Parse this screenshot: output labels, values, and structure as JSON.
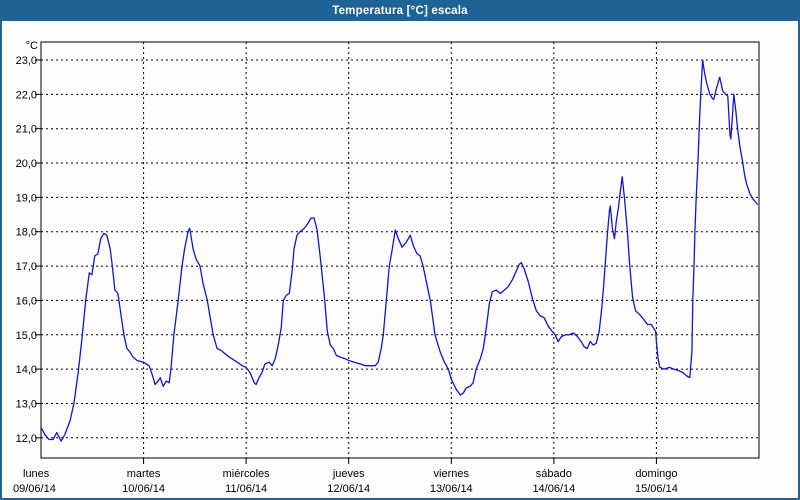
{
  "window": {
    "title": "Temperatura [°C] escala"
  },
  "colors": {
    "titlebar_bg": "#1E6296",
    "frame_border": "#1E6296",
    "titlebar_text": "#FFFFFF",
    "line": "#1414CC",
    "grid": "#000000",
    "axis": "#000000",
    "background": "#FDFDFD",
    "label_text": "#000000"
  },
  "chart_data": {
    "type": "line",
    "title": "Temperatura [°C] escala",
    "ylabel": "°C",
    "ylim": [
      11.4,
      23.5
    ],
    "xlim_hours": [
      0,
      168
    ],
    "grid": "dashed horizontal every 1.0 °C, dashed vertical at each day boundary",
    "legend_position": "none",
    "y_tick_values": [
      23,
      22,
      21,
      20,
      19,
      18,
      17,
      16,
      15,
      14,
      13,
      12
    ],
    "y_tick_labels": [
      "23,0",
      "22,0",
      "21,0",
      "20,0",
      "19,0",
      "18,0",
      "17,0",
      "16,0",
      "15,0",
      "14,0",
      "13,0",
      "12,0"
    ],
    "x_categories": [
      {
        "day": "lunes",
        "date": "09/06/14"
      },
      {
        "day": "martes",
        "date": "10/06/14"
      },
      {
        "day": "miércoles",
        "date": "11/06/14"
      },
      {
        "day": "jueves",
        "date": "12/06/14"
      },
      {
        "day": "viernes",
        "date": "13/06/14"
      },
      {
        "day": "sábado",
        "date": "14/06/14"
      },
      {
        "day": "domingo",
        "date": "15/06/14"
      }
    ],
    "series": [
      {
        "name": "Temperatura [°C]",
        "color": "#1414CC",
        "points": [
          [
            0,
            12.3
          ],
          [
            0.9,
            12.1
          ],
          [
            1.9,
            11.95
          ],
          [
            2.8,
            11.95
          ],
          [
            3.7,
            12.15
          ],
          [
            4.7,
            11.9
          ],
          [
            5.6,
            12.1
          ],
          [
            6.8,
            12.5
          ],
          [
            7.7,
            13.0
          ],
          [
            8.7,
            13.9
          ],
          [
            9.6,
            14.9
          ],
          [
            10.5,
            16.05
          ],
          [
            11.3,
            16.8
          ],
          [
            11.9,
            16.75
          ],
          [
            12.6,
            17.3
          ],
          [
            13.3,
            17.35
          ],
          [
            14.0,
            17.8
          ],
          [
            14.7,
            17.95
          ],
          [
            15.4,
            17.9
          ],
          [
            16.2,
            17.5
          ],
          [
            16.6,
            17.1
          ],
          [
            17.3,
            16.3
          ],
          [
            18.0,
            16.2
          ],
          [
            18.7,
            15.6
          ],
          [
            19.4,
            15.0
          ],
          [
            20.1,
            14.6
          ],
          [
            20.8,
            14.5
          ],
          [
            21.5,
            14.35
          ],
          [
            22.5,
            14.25
          ],
          [
            24.0,
            14.2
          ],
          [
            24.6,
            14.15
          ],
          [
            25.3,
            14.1
          ],
          [
            26.0,
            13.85
          ],
          [
            26.7,
            13.55
          ],
          [
            27.4,
            13.65
          ],
          [
            27.9,
            13.75
          ],
          [
            28.6,
            13.5
          ],
          [
            29.3,
            13.65
          ],
          [
            30.0,
            13.6
          ],
          [
            30.4,
            14.0
          ],
          [
            31.1,
            15.0
          ],
          [
            32.1,
            16.0
          ],
          [
            33.0,
            17.0
          ],
          [
            33.6,
            17.5
          ],
          [
            34.4,
            18.0
          ],
          [
            34.8,
            18.1
          ],
          [
            35.6,
            17.5
          ],
          [
            36.3,
            17.2
          ],
          [
            37.2,
            17.0
          ],
          [
            37.9,
            16.5
          ],
          [
            38.9,
            16.0
          ],
          [
            39.6,
            15.5
          ],
          [
            40.3,
            15.0
          ],
          [
            41.2,
            14.6
          ],
          [
            42.1,
            14.55
          ],
          [
            43.5,
            14.4
          ],
          [
            44.7,
            14.3
          ],
          [
            45.9,
            14.2
          ],
          [
            47.1,
            14.1
          ],
          [
            48.0,
            14.05
          ],
          [
            48.9,
            13.9
          ],
          [
            49.9,
            13.6
          ],
          [
            50.3,
            13.55
          ],
          [
            51.0,
            13.75
          ],
          [
            51.7,
            13.9
          ],
          [
            52.4,
            14.15
          ],
          [
            53.4,
            14.2
          ],
          [
            54.1,
            14.1
          ],
          [
            54.8,
            14.3
          ],
          [
            55.5,
            14.7
          ],
          [
            56.2,
            15.2
          ],
          [
            56.7,
            16.0
          ],
          [
            57.4,
            16.15
          ],
          [
            58.1,
            16.2
          ],
          [
            58.8,
            16.9
          ],
          [
            59.2,
            17.5
          ],
          [
            59.9,
            17.9
          ],
          [
            60.6,
            18.0
          ],
          [
            61.6,
            18.1
          ],
          [
            62.5,
            18.25
          ],
          [
            63.2,
            18.4
          ],
          [
            63.9,
            18.4
          ],
          [
            64.6,
            18.05
          ],
          [
            65.3,
            17.3
          ],
          [
            66.3,
            16.1
          ],
          [
            67.0,
            15.1
          ],
          [
            67.7,
            14.7
          ],
          [
            68.4,
            14.6
          ],
          [
            69.1,
            14.4
          ],
          [
            70.0,
            14.35
          ],
          [
            71.2,
            14.3
          ],
          [
            72.0,
            14.25
          ],
          [
            73.3,
            14.2
          ],
          [
            74.7,
            14.15
          ],
          [
            75.9,
            14.1
          ],
          [
            77.0,
            14.1
          ],
          [
            78.2,
            14.1
          ],
          [
            78.9,
            14.2
          ],
          [
            79.6,
            14.6
          ],
          [
            80.1,
            15.0
          ],
          [
            80.8,
            16.0
          ],
          [
            81.5,
            17.0
          ],
          [
            82.2,
            17.5
          ],
          [
            82.9,
            18.05
          ],
          [
            83.6,
            17.8
          ],
          [
            84.5,
            17.55
          ],
          [
            85.5,
            17.7
          ],
          [
            86.4,
            17.9
          ],
          [
            87.1,
            17.6
          ],
          [
            88.0,
            17.35
          ],
          [
            88.7,
            17.3
          ],
          [
            89.4,
            17.0
          ],
          [
            90.4,
            16.4
          ],
          [
            91.1,
            16.0
          ],
          [
            92.2,
            15.0
          ],
          [
            93.4,
            14.5
          ],
          [
            94.4,
            14.2
          ],
          [
            95.3,
            14.0
          ],
          [
            96.0,
            13.7
          ],
          [
            97.2,
            13.4
          ],
          [
            98.1,
            13.25
          ],
          [
            98.8,
            13.3
          ],
          [
            99.5,
            13.45
          ],
          [
            100.4,
            13.5
          ],
          [
            101.1,
            13.6
          ],
          [
            101.8,
            14.0
          ],
          [
            102.8,
            14.3
          ],
          [
            103.5,
            14.6
          ],
          [
            104.2,
            15.2
          ],
          [
            104.9,
            15.9
          ],
          [
            105.6,
            16.25
          ],
          [
            106.5,
            16.3
          ],
          [
            107.5,
            16.2
          ],
          [
            108.4,
            16.3
          ],
          [
            109.3,
            16.4
          ],
          [
            110.3,
            16.6
          ],
          [
            111.2,
            16.85
          ],
          [
            111.9,
            17.05
          ],
          [
            112.4,
            17.1
          ],
          [
            113.1,
            16.9
          ],
          [
            114.0,
            16.55
          ],
          [
            115.0,
            16.05
          ],
          [
            115.9,
            15.7
          ],
          [
            116.8,
            15.55
          ],
          [
            117.7,
            15.5
          ],
          [
            118.7,
            15.25
          ],
          [
            119.6,
            15.1
          ],
          [
            120.3,
            15.0
          ],
          [
            121.0,
            14.8
          ],
          [
            121.8,
            14.95
          ],
          [
            122.7,
            15.0
          ],
          [
            123.6,
            15.0
          ],
          [
            124.6,
            15.05
          ],
          [
            125.5,
            14.95
          ],
          [
            126.4,
            14.8
          ],
          [
            127.1,
            14.65
          ],
          [
            127.8,
            14.6
          ],
          [
            128.5,
            14.8
          ],
          [
            129.2,
            14.7
          ],
          [
            129.9,
            14.75
          ],
          [
            130.6,
            15.1
          ],
          [
            131.3,
            15.9
          ],
          [
            132.0,
            17.0
          ],
          [
            132.5,
            17.9
          ],
          [
            133.0,
            18.6
          ],
          [
            133.2,
            18.75
          ],
          [
            133.7,
            18.1
          ],
          [
            134.2,
            17.8
          ],
          [
            134.6,
            18.3
          ],
          [
            135.1,
            18.7
          ],
          [
            135.6,
            19.2
          ],
          [
            136.0,
            19.6
          ],
          [
            136.5,
            19.0
          ],
          [
            137.2,
            18.0
          ],
          [
            137.7,
            17.1
          ],
          [
            138.4,
            16.1
          ],
          [
            139.1,
            15.7
          ],
          [
            140.0,
            15.6
          ],
          [
            141.0,
            15.45
          ],
          [
            141.9,
            15.3
          ],
          [
            142.8,
            15.3
          ],
          [
            143.8,
            15.1
          ],
          [
            144.0,
            14.8
          ],
          [
            144.4,
            14.3
          ],
          [
            144.8,
            14.05
          ],
          [
            145.8,
            14.0
          ],
          [
            147.0,
            14.05
          ],
          [
            148.1,
            14.0
          ],
          [
            149.3,
            13.95
          ],
          [
            150.2,
            13.9
          ],
          [
            151.1,
            13.8
          ],
          [
            151.8,
            13.75
          ],
          [
            152.3,
            14.5
          ],
          [
            152.5,
            16.0
          ],
          [
            152.8,
            17.0
          ],
          [
            153.0,
            18.0
          ],
          [
            153.3,
            19.0
          ],
          [
            153.7,
            20.0
          ],
          [
            154.1,
            21.3
          ],
          [
            154.5,
            22.3
          ],
          [
            154.8,
            23.0
          ],
          [
            155.3,
            22.6
          ],
          [
            155.8,
            22.3
          ],
          [
            156.5,
            22.0
          ],
          [
            157.0,
            21.9
          ],
          [
            157.4,
            21.85
          ],
          [
            158.1,
            22.2
          ],
          [
            158.8,
            22.5
          ],
          [
            159.5,
            22.1
          ],
          [
            160.2,
            22.0
          ],
          [
            160.7,
            21.95
          ],
          [
            161.2,
            20.85
          ],
          [
            161.4,
            20.7
          ],
          [
            161.8,
            21.4
          ],
          [
            162.1,
            22.0
          ],
          [
            162.6,
            21.5
          ],
          [
            163.0,
            21.0
          ],
          [
            163.5,
            20.5
          ],
          [
            164.2,
            20.0
          ],
          [
            164.7,
            19.6
          ],
          [
            165.2,
            19.35
          ],
          [
            165.9,
            19.1
          ],
          [
            166.6,
            18.95
          ],
          [
            167.3,
            18.85
          ],
          [
            167.6,
            18.8
          ]
        ]
      }
    ]
  }
}
